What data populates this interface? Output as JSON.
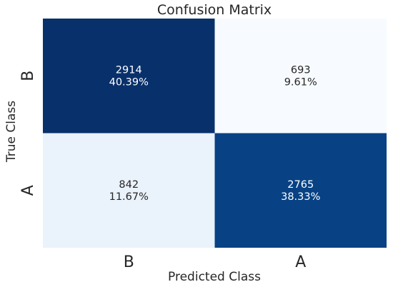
{
  "chart_data": {
    "type": "heatmap",
    "title": "Confusion Matrix",
    "xlabel": "Predicted Class",
    "ylabel": "True Class",
    "x_categories": [
      "B",
      "A"
    ],
    "y_categories": [
      "B",
      "A"
    ],
    "values": [
      [
        2914,
        693
      ],
      [
        842,
        2765
      ]
    ],
    "cell_labels": [
      [
        [
          "2914",
          "40.39%"
        ],
        [
          "693",
          "9.61%"
        ]
      ],
      [
        [
          "842",
          "11.67%"
        ],
        [
          "2765",
          "38.33%"
        ]
      ]
    ],
    "colormap": "Blues",
    "colors": {
      "low": "#f7fbff",
      "high": "#08306b",
      "text_light": "#ffffff",
      "text_dark": "#262626"
    },
    "colorbar": false,
    "grid": false
  }
}
